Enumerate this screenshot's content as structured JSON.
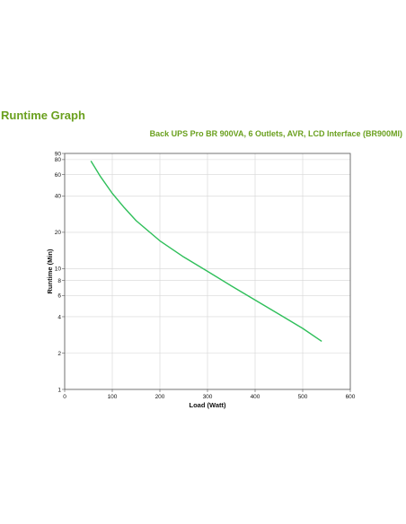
{
  "page": {
    "heading": "Runtime Graph",
    "subtitle": "Back UPS Pro BR 900VA, 6 Outlets, AVR, LCD Interface (BR900MI)"
  },
  "colors": {
    "accent": "#6aa01e",
    "line": "#2fbf5a",
    "grid": "#d6d6d6"
  },
  "chart_data": {
    "type": "line",
    "title": "Back UPS Pro BR 900VA, 6 Outlets, AVR, LCD Interface (BR900MI)",
    "xlabel": "Load (Watt)",
    "ylabel": "Runtime (Min)",
    "xlim": [
      0,
      600
    ],
    "ylim": [
      1,
      90
    ],
    "yscale": "log",
    "grid": true,
    "xticks": [
      0,
      100,
      200,
      300,
      400,
      500,
      600
    ],
    "yticks": [
      1,
      2,
      4,
      6,
      8,
      10,
      20,
      40,
      60,
      80,
      90
    ],
    "series": [
      {
        "x": [
          55,
          75,
          100,
          125,
          150,
          200,
          250,
          300,
          350,
          400,
          450,
          500,
          540
        ],
        "y": [
          78,
          58,
          42,
          32,
          25,
          17,
          12.5,
          9.5,
          7.2,
          5.5,
          4.2,
          3.2,
          2.5
        ]
      }
    ]
  }
}
